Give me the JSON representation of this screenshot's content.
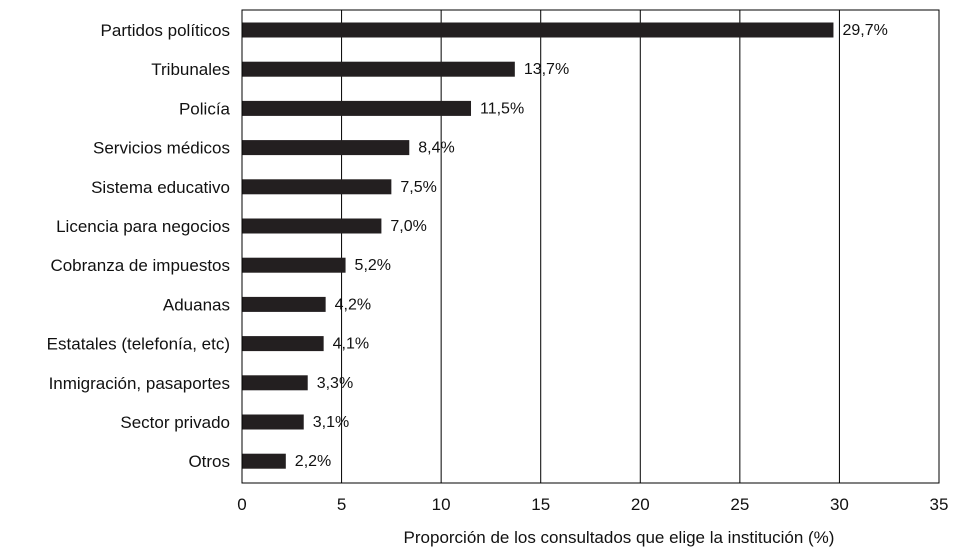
{
  "chart_data": {
    "type": "bar",
    "orientation": "horizontal",
    "categories": [
      "Partidos políticos",
      "Tribunales",
      "Policía",
      "Servicios médicos",
      "Sistema educativo",
      "Licencia para negocios",
      "Cobranza de impuestos",
      "Aduanas",
      "Estatales (telefonía, etc)",
      "Inmigración, pasaportes",
      "Sector privado",
      "Otros"
    ],
    "values": [
      29.7,
      13.7,
      11.5,
      8.4,
      7.5,
      7.0,
      5.2,
      4.2,
      4.1,
      3.3,
      3.1,
      2.2
    ],
    "value_labels": [
      "29,7%",
      "13,7%",
      "11,5%",
      "8,4%",
      "7,5%",
      "7,0%",
      "5,2%",
      "4,2%",
      "4,1%",
      "3,3%",
      "3,1%",
      "2,2%"
    ],
    "title": "",
    "xlabel": "Proporción de los consultados que elige la institución (%)",
    "ylabel": "",
    "xlim": [
      0,
      35
    ],
    "xticks": [
      0,
      5,
      10,
      15,
      20,
      25,
      30,
      35
    ],
    "xtick_labels": [
      "0",
      "5",
      "10",
      "15",
      "20",
      "25",
      "30",
      "35"
    ],
    "grid": "vertical",
    "legend": "none",
    "colors": {
      "bar": "#231f20",
      "grid": "#000000",
      "text": "#111111"
    }
  }
}
